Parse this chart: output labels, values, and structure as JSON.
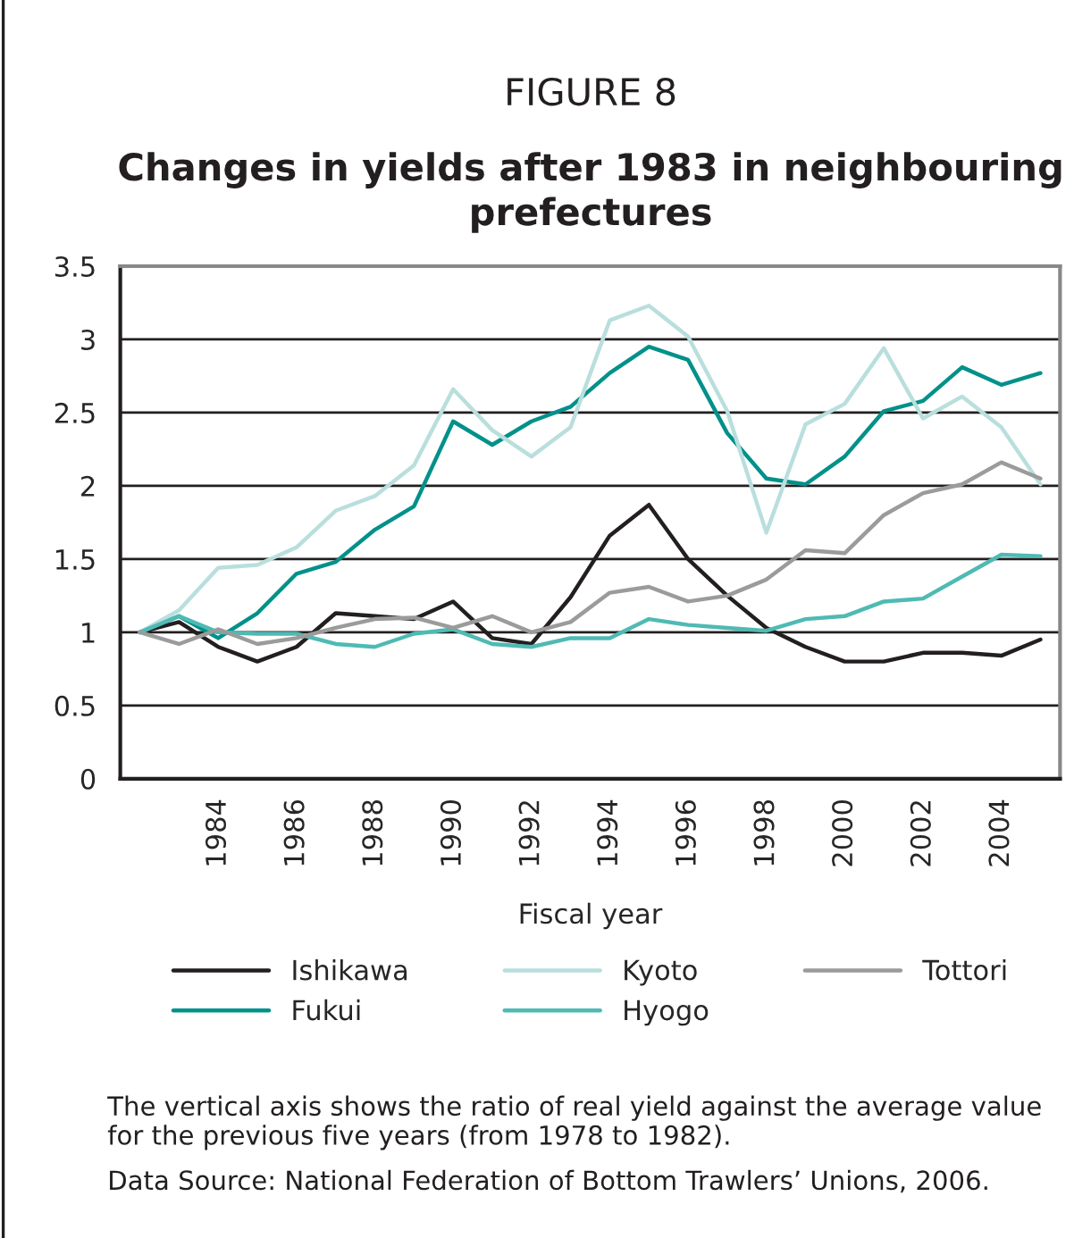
{
  "chart_data": {
    "type": "line",
    "title": "FIGURE 8",
    "subtitle": "Changes in yields after 1983 in neighbouring prefectures",
    "xlabel": "Fiscal year",
    "categories": [
      null,
      null,
      "1984",
      null,
      "1986",
      null,
      "1988",
      null,
      "1990",
      null,
      "1992",
      null,
      "1994",
      null,
      "1996",
      null,
      "1998",
      null,
      "2000",
      null,
      "2002",
      null,
      "2004",
      null
    ],
    "series": [
      {
        "name": "Ishikawa",
        "color": "#231f20",
        "values": [
          1.0,
          1.07,
          0.9,
          0.8,
          0.9,
          1.13,
          1.11,
          1.09,
          1.21,
          0.96,
          0.92,
          1.24,
          1.66,
          1.87,
          1.5,
          1.25,
          1.03,
          0.9,
          0.8,
          0.8,
          0.86,
          0.86,
          0.84,
          0.95
        ]
      },
      {
        "name": "Fukui",
        "color": "#00918a",
        "values": [
          1.0,
          1.11,
          0.96,
          1.13,
          1.4,
          1.48,
          1.7,
          1.86,
          2.44,
          2.28,
          2.44,
          2.54,
          2.77,
          2.95,
          2.86,
          2.36,
          2.05,
          2.01,
          2.2,
          2.51,
          2.58,
          2.81,
          2.69,
          2.77
        ]
      },
      {
        "name": "Kyoto",
        "color": "#b9dfdd",
        "values": [
          1.0,
          1.15,
          1.44,
          1.46,
          1.58,
          1.83,
          1.93,
          2.14,
          2.66,
          2.38,
          2.2,
          2.4,
          3.13,
          3.23,
          3.02,
          2.51,
          1.68,
          2.42,
          2.56,
          2.94,
          2.46,
          2.61,
          2.4,
          2.01
        ]
      },
      {
        "name": "Hyogo",
        "color": "#4fbab3",
        "values": [
          1.0,
          1.11,
          1.0,
          0.99,
          0.99,
          0.92,
          0.9,
          0.99,
          1.02,
          0.92,
          0.9,
          0.96,
          0.96,
          1.09,
          1.05,
          1.03,
          1.01,
          1.09,
          1.11,
          1.21,
          1.23,
          1.38,
          1.53,
          1.52
        ]
      },
      {
        "name": "Tottori",
        "color": "#9b9b9b",
        "values": [
          1.0,
          0.92,
          1.02,
          0.92,
          0.96,
          1.03,
          1.09,
          1.1,
          1.03,
          1.11,
          1.0,
          1.07,
          1.27,
          1.31,
          1.21,
          1.25,
          1.36,
          1.56,
          1.54,
          1.8,
          1.95,
          2.01,
          2.16,
          2.05
        ]
      }
    ],
    "ylim": [
      0,
      3.5
    ],
    "yticks": [
      0,
      0.5,
      1,
      1.5,
      2,
      2.5,
      3,
      3.5
    ],
    "grid": "y",
    "legend": "bottom",
    "marker": "none",
    "line_style": "solid",
    "annotations": [
      "The vertical axis shows the ratio of real yield against the average value for the previous five years (from 1978 to 1982).",
      "Data Source: National Federation of Bottom Trawlers’ Unions, 2006."
    ]
  }
}
